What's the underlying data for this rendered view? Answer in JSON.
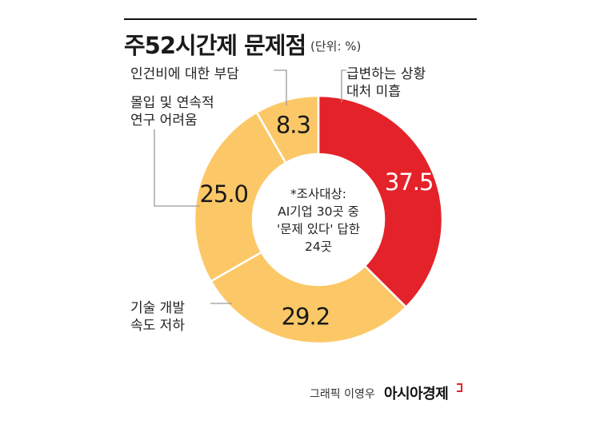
{
  "chart_data": {
    "type": "pie",
    "style": "donut",
    "title": "주52시간제 문제점",
    "unit_note": "(단위: %)",
    "categories": [
      "급변하는 상황 대처 미흡",
      "기술 개발 속도 저하",
      "몰입 및 연속적 연구 어려움",
      "인건비에 대한 부담"
    ],
    "values": [
      37.5,
      29.2,
      25.0,
      8.3
    ],
    "value_labels": [
      "37.5",
      "29.2",
      "25.0",
      "8.3"
    ],
    "label_lines": [
      [
        "급변하는 상황",
        "대처 미흡"
      ],
      [
        "기술 개발",
        "속도 저하"
      ],
      [
        "몰입 및 연속적",
        "연구 어려움"
      ],
      [
        "인건비에 대한 부담"
      ]
    ],
    "colors": [
      "#e4222a",
      "#fcc867",
      "#fcc867",
      "#fcc867"
    ],
    "center_note": [
      "*조사대상:",
      "AI기업 30곳 중",
      "'문제 있다' 답한",
      "24곳"
    ]
  },
  "footer": {
    "credit": "그래픽 이영우",
    "brand": "아시아경제"
  }
}
